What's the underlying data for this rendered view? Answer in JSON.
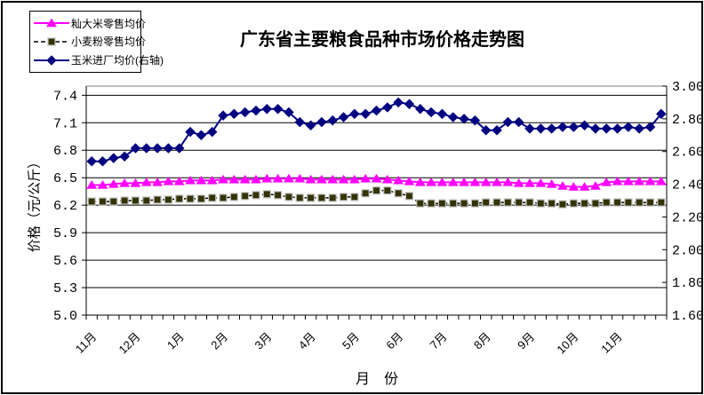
{
  "page": {
    "background": "#FFFFFF",
    "border_color": "#000000",
    "gridline_color": "#000000",
    "plot_top_border_color": "#808080"
  },
  "chart_data": {
    "type": "line",
    "title": "广东省主要粮食品种市场价格走势图",
    "xlabel": "月　份",
    "ylabel_left": "价格（元/公斤）",
    "grid": true,
    "legend_position": "top-left",
    "x_count": 53,
    "month_labels": [
      "11月",
      "12月",
      "1月",
      "2月",
      "3月",
      "4月",
      "5月",
      "6月",
      "7月",
      "8月",
      "9月",
      "10月",
      "11月"
    ],
    "month_label_indices": [
      0,
      4,
      8,
      12,
      16,
      20,
      24,
      28,
      32,
      36,
      40,
      44,
      48
    ],
    "left_axis": {
      "min": 5.0,
      "max": 7.5,
      "tick_labels": [
        "7.4",
        "7.1",
        "6.8",
        "6.5",
        "6.2",
        "5.9",
        "5.6",
        "5.3",
        "5.0"
      ]
    },
    "right_axis": {
      "min": 1.6,
      "max": 3.0,
      "tick_labels": [
        "3.00",
        "2.80",
        "2.60",
        "2.40",
        "2.20",
        "2.00",
        "1.80",
        "1.60"
      ]
    },
    "series": [
      {
        "name": "籼大米零售均价",
        "axis": "left",
        "color": "#FF00FF",
        "marker": "triangle",
        "marker_fill": "#FF00FF",
        "marker_stroke": "#FF00FF",
        "line_style": "solid",
        "line_width": 2,
        "values": [
          6.42,
          6.42,
          6.43,
          6.44,
          6.44,
          6.45,
          6.45,
          6.46,
          6.46,
          6.47,
          6.47,
          6.47,
          6.48,
          6.48,
          6.48,
          6.48,
          6.49,
          6.49,
          6.49,
          6.49,
          6.48,
          6.48,
          6.48,
          6.48,
          6.48,
          6.49,
          6.49,
          6.48,
          6.47,
          6.46,
          6.45,
          6.45,
          6.45,
          6.45,
          6.45,
          6.45,
          6.45,
          6.45,
          6.45,
          6.44,
          6.44,
          6.44,
          6.43,
          6.41,
          6.4,
          6.4,
          6.41,
          6.45,
          6.46,
          6.46,
          6.46,
          6.46,
          6.46
        ]
      },
      {
        "name": "小麦粉零售均价",
        "axis": "left",
        "color": "#000000",
        "marker": "square",
        "marker_fill": "#333300",
        "marker_stroke": "#C0C0C0",
        "line_style": "dashed",
        "line_width": 1.5,
        "values": [
          6.24,
          6.24,
          6.24,
          6.25,
          6.25,
          6.25,
          6.26,
          6.26,
          6.27,
          6.27,
          6.27,
          6.28,
          6.28,
          6.29,
          6.3,
          6.31,
          6.32,
          6.31,
          6.29,
          6.28,
          6.28,
          6.28,
          6.28,
          6.29,
          6.29,
          6.33,
          6.36,
          6.36,
          6.33,
          6.3,
          6.22,
          6.22,
          6.22,
          6.22,
          6.22,
          6.22,
          6.23,
          6.23,
          6.23,
          6.23,
          6.23,
          6.22,
          6.22,
          6.21,
          6.22,
          6.22,
          6.22,
          6.23,
          6.23,
          6.23,
          6.23,
          6.23,
          6.23
        ]
      },
      {
        "name": "玉米进厂均价(右轴)",
        "axis": "right",
        "color": "#000080",
        "marker": "diamond",
        "marker_fill": "#000080",
        "marker_stroke": "#000080",
        "line_style": "solid",
        "line_width": 2,
        "values": [
          2.54,
          2.54,
          2.56,
          2.57,
          2.62,
          2.62,
          2.62,
          2.62,
          2.62,
          2.72,
          2.7,
          2.72,
          2.82,
          2.83,
          2.84,
          2.85,
          2.86,
          2.86,
          2.84,
          2.78,
          2.76,
          2.78,
          2.79,
          2.81,
          2.83,
          2.83,
          2.85,
          2.87,
          2.9,
          2.89,
          2.86,
          2.84,
          2.83,
          2.81,
          2.8,
          2.79,
          2.73,
          2.73,
          2.78,
          2.78,
          2.74,
          2.74,
          2.74,
          2.75,
          2.75,
          2.76,
          2.74,
          2.74,
          2.74,
          2.75,
          2.74,
          2.75,
          2.83
        ]
      }
    ]
  }
}
